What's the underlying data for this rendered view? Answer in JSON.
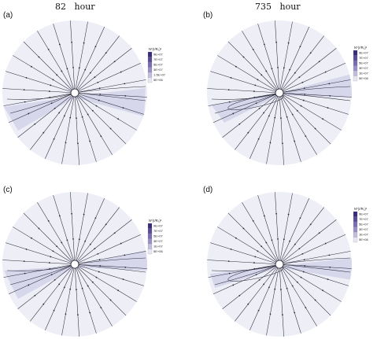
{
  "columns": [
    {
      "title": "82   hour"
    },
    {
      "title": "735   hour"
    }
  ],
  "panels": [
    {
      "label": "(a)",
      "legend_title": "N*(r/R₀)²",
      "legend_levels": [
        "9E+07",
        "7E+07",
        "5E+07",
        "3E+07",
        "1.5E+07",
        "5E+06"
      ],
      "colors": {
        "base": "#eeeef7",
        "band": "#d7d7ec"
      }
    },
    {
      "label": "(b)",
      "legend_title": "N*(r/R₀)²",
      "legend_levels": [
        "9E+07",
        "7E+07",
        "5E+07",
        "3E+07",
        "1E+07",
        "5E+06"
      ],
      "colors": {
        "base": "#eeeef7",
        "band": "#d7d7ec"
      }
    },
    {
      "label": "(c)",
      "legend_title": "N*(r/R₀)²",
      "legend_levels": [
        "9E+07",
        "7E+07",
        "5E+07",
        "3E+07",
        "1E+07",
        "5E+06"
      ],
      "colors": {
        "base": "#eeeef7",
        "band": "#d7d7ec"
      }
    },
    {
      "label": "(d)",
      "legend_title": "N*(r/R₀)²",
      "legend_levels": [
        "9E+07",
        "7E+07",
        "5E+07",
        "3E+07",
        "1E+07",
        "5E+06"
      ],
      "colors": {
        "base": "#eeeef7",
        "band": "#d7d7ec"
      }
    }
  ],
  "legend_swatch_colors": [
    "#3a2a7a",
    "#5a4a98",
    "#7a6cb2",
    "#9a90c8",
    "#c2bcde",
    "#e8e6f3"
  ]
}
